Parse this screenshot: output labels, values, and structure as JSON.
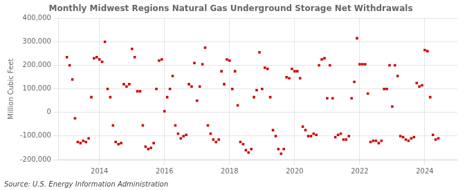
{
  "chart_data": {
    "type": "scatter",
    "title": "Monthly Midwest Regions Natural Gas Underground Storage Net Withdrawals",
    "ylabel": "Million Cubic Feet",
    "source": "Source: U.S. Energy Information Administration",
    "color": "#cc0000",
    "marker": "square",
    "grid": true,
    "xlim": [
      2012.75,
      2025.0
    ],
    "xticks": [
      2014,
      2016,
      2018,
      2020,
      2022,
      2024
    ],
    "ylim": [
      -200000,
      400000
    ],
    "yticks": [
      {
        "value": -200000,
        "label": "-200,000"
      },
      {
        "value": -100000,
        "label": "-100,000"
      },
      0,
      {
        "value": 100000,
        "label": "100,000"
      },
      {
        "value": 200000,
        "label": "200,000"
      },
      {
        "value": 300000,
        "label": "300,000"
      },
      {
        "value": 400000,
        "label": "400,000"
      }
    ],
    "x": [
      2013.0,
      2013.083,
      2013.167,
      2013.25,
      2013.333,
      2013.417,
      2013.5,
      2013.583,
      2013.667,
      2013.75,
      2013.833,
      2013.917,
      2014.0,
      2014.083,
      2014.167,
      2014.25,
      2014.333,
      2014.417,
      2014.5,
      2014.583,
      2014.667,
      2014.75,
      2014.833,
      2014.917,
      2015.0,
      2015.083,
      2015.167,
      2015.25,
      2015.333,
      2015.417,
      2015.5,
      2015.583,
      2015.667,
      2015.75,
      2015.833,
      2015.917,
      2016.0,
      2016.083,
      2016.167,
      2016.25,
      2016.333,
      2016.417,
      2016.5,
      2016.583,
      2016.667,
      2016.75,
      2016.833,
      2016.917,
      2017.0,
      2017.083,
      2017.167,
      2017.25,
      2017.333,
      2017.417,
      2017.5,
      2017.583,
      2017.667,
      2017.75,
      2017.833,
      2017.917,
      2018.0,
      2018.083,
      2018.167,
      2018.25,
      2018.333,
      2018.417,
      2018.5,
      2018.583,
      2018.667,
      2018.75,
      2018.833,
      2018.917,
      2019.0,
      2019.083,
      2019.167,
      2019.25,
      2019.333,
      2019.417,
      2019.5,
      2019.583,
      2019.667,
      2019.75,
      2019.833,
      2019.917,
      2020.0,
      2020.083,
      2020.167,
      2020.25,
      2020.333,
      2020.417,
      2020.5,
      2020.583,
      2020.667,
      2020.75,
      2020.833,
      2020.917,
      2021.0,
      2021.083,
      2021.167,
      2021.25,
      2021.333,
      2021.417,
      2021.5,
      2021.583,
      2021.667,
      2021.75,
      2021.833,
      2021.917,
      2022.0,
      2022.083,
      2022.167,
      2022.25,
      2022.333,
      2022.417,
      2022.5,
      2022.583,
      2022.667,
      2022.75,
      2022.833,
      2022.917,
      2023.0,
      2023.083,
      2023.167,
      2023.25,
      2023.333,
      2023.417,
      2023.5,
      2023.583,
      2023.667,
      2023.75,
      2023.833,
      2023.917,
      2024.0,
      2024.083,
      2024.167,
      2024.25,
      2024.333,
      2024.417
    ],
    "values": [
      235000,
      200000,
      140000,
      -25000,
      -125000,
      -130000,
      -120000,
      -125000,
      -110000,
      65000,
      230000,
      235000,
      225000,
      215000,
      300000,
      100000,
      65000,
      -55000,
      -125000,
      -135000,
      -130000,
      120000,
      110000,
      120000,
      270000,
      235000,
      90000,
      90000,
      -55000,
      -145000,
      -155000,
      -150000,
      -130000,
      100000,
      220000,
      225000,
      5000,
      65000,
      100000,
      155000,
      -55000,
      -90000,
      -110000,
      -100000,
      -95000,
      120000,
      110000,
      210000,
      50000,
      110000,
      205000,
      275000,
      -55000,
      -90000,
      -115000,
      -125000,
      -115000,
      175000,
      120000,
      225000,
      220000,
      100000,
      175000,
      30000,
      -125000,
      -135000,
      -160000,
      -170000,
      -155000,
      65000,
      95000,
      255000,
      100000,
      190000,
      185000,
      65000,
      -75000,
      -100000,
      -155000,
      -175000,
      -155000,
      150000,
      145000,
      185000,
      175000,
      175000,
      145000,
      -60000,
      -75000,
      -100000,
      -100000,
      -90000,
      -95000,
      200000,
      225000,
      230000,
      60000,
      200000,
      60000,
      -105000,
      -95000,
      -90000,
      -115000,
      -115000,
      -100000,
      60000,
      130000,
      315000,
      205000,
      205000,
      205000,
      80000,
      -125000,
      -120000,
      -120000,
      -130000,
      -120000,
      100000,
      100000,
      200000,
      25000,
      200000,
      155000,
      -100000,
      -105000,
      -115000,
      -120000,
      -110000,
      -105000,
      125000,
      110000,
      115000,
      265000,
      260000,
      65000,
      -95000,
      -115000,
      -110000
    ]
  }
}
